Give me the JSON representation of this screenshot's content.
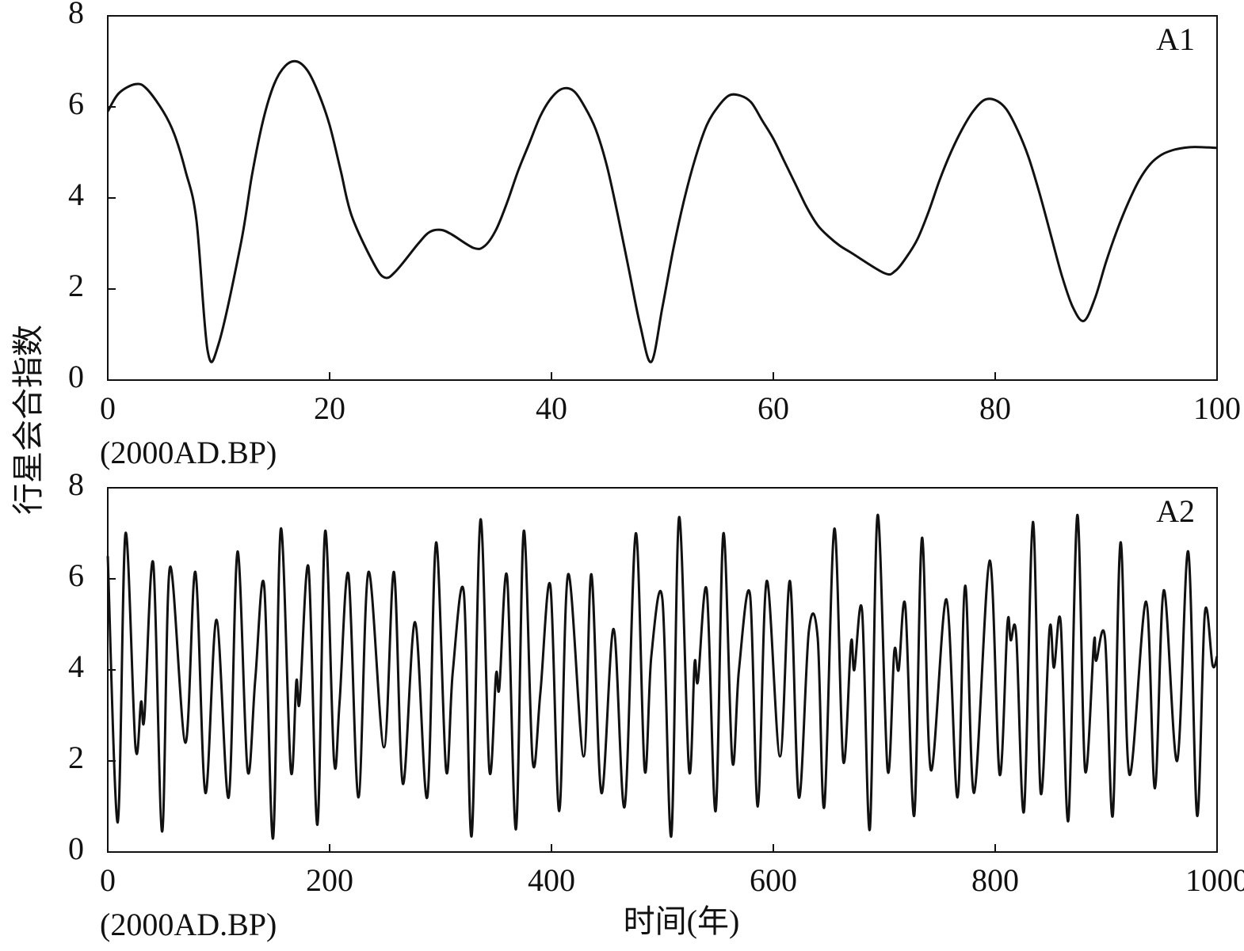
{
  "chart_data": [
    {
      "type": "line",
      "label": "A1",
      "ylabel": "行星会合指数",
      "note": "(2000AD.BP)",
      "x": [
        0,
        1,
        2.5,
        3.5,
        5,
        6,
        7,
        8,
        9,
        10,
        12,
        13,
        14,
        15,
        16,
        17,
        18,
        19,
        20,
        21,
        22,
        24,
        25,
        26,
        28,
        29,
        30,
        31,
        33,
        34,
        35,
        36,
        37,
        38,
        39,
        40,
        41,
        42,
        43,
        44,
        45,
        46,
        47,
        48,
        49,
        50,
        51,
        52,
        53,
        54,
        55,
        56,
        57,
        58,
        59,
        60,
        61,
        62,
        63,
        64,
        65,
        66,
        67,
        70,
        71,
        72,
        73,
        74,
        75,
        76,
        77,
        78,
        79,
        80,
        81,
        82,
        83,
        84,
        85,
        86,
        87,
        88,
        89,
        90,
        91,
        92,
        93,
        94,
        95,
        96,
        97,
        98,
        100
      ],
      "series": [
        {
          "name": null,
          "color": "#111111",
          "values": [
            5.9,
            6.3,
            6.5,
            6.4,
            5.9,
            5.4,
            4.6,
            3.5,
            0.65,
            0.8,
            3.0,
            4.5,
            5.7,
            6.5,
            6.9,
            7.0,
            6.8,
            6.3,
            5.6,
            4.6,
            3.6,
            2.55,
            2.25,
            2.4,
            3.0,
            3.25,
            3.3,
            3.2,
            2.9,
            2.95,
            3.3,
            3.9,
            4.6,
            5.2,
            5.8,
            6.2,
            6.4,
            6.35,
            6.0,
            5.5,
            4.7,
            3.6,
            2.4,
            1.2,
            0.4,
            1.6,
            2.9,
            4.0,
            4.9,
            5.6,
            6.0,
            6.25,
            6.25,
            6.1,
            5.7,
            5.3,
            4.8,
            4.3,
            3.8,
            3.4,
            3.15,
            2.95,
            2.8,
            2.35,
            2.4,
            2.7,
            3.1,
            3.7,
            4.4,
            5.0,
            5.5,
            5.9,
            6.15,
            6.15,
            5.95,
            5.5,
            4.9,
            4.1,
            3.2,
            2.3,
            1.6,
            1.3,
            1.8,
            2.6,
            3.3,
            3.9,
            4.4,
            4.75,
            4.95,
            5.05,
            5.1,
            5.12,
            5.1
          ]
        }
      ],
      "xlim": [
        0,
        100
      ],
      "xticks": [
        0,
        20,
        40,
        60,
        80,
        100
      ],
      "ylim": [
        0,
        8
      ],
      "yticks": [
        0,
        2,
        4,
        6,
        8
      ]
    },
    {
      "type": "line",
      "label": "A2",
      "xlabel": "时间(年)",
      "note": "(2000AD.BP)",
      "x": [
        0,
        9,
        16,
        25,
        30,
        33,
        41,
        49,
        56,
        70,
        79,
        88,
        98,
        109,
        117,
        126,
        133,
        141,
        149,
        156,
        165,
        170,
        173,
        181,
        189,
        196,
        204,
        209,
        217,
        226,
        235,
        249,
        258,
        266,
        277,
        288,
        296,
        305,
        311,
        321,
        328,
        336,
        344,
        350,
        353,
        360,
        368,
        375,
        383,
        390,
        399,
        407,
        415,
        429,
        436,
        445,
        456,
        466,
        476,
        484,
        490,
        500,
        508,
        515,
        524,
        529,
        532,
        540,
        548,
        555,
        563,
        569,
        579,
        586,
        594,
        606,
        615,
        623,
        632,
        640,
        646,
        655,
        663,
        670,
        673,
        680,
        687,
        694,
        703,
        709,
        713,
        719,
        727,
        734,
        742,
        756,
        766,
        773,
        781,
        795,
        804,
        811,
        814,
        819,
        826,
        834,
        841,
        849,
        853,
        859,
        866,
        874,
        881,
        889,
        891,
        899,
        906,
        913,
        921,
        936,
        944,
        952,
        964,
        974,
        982,
        989,
        996,
        1000
      ],
      "series": [
        {
          "name": null,
          "color": "#111111",
          "values": [
            6.5,
            0.65,
            7.0,
            2.3,
            3.3,
            2.95,
            6.35,
            0.45,
            6.25,
            2.4,
            6.15,
            1.3,
            5.1,
            1.2,
            6.6,
            1.8,
            3.8,
            5.85,
            0.3,
            7.1,
            1.8,
            3.75,
            3.3,
            6.25,
            0.6,
            7.05,
            2.0,
            3.3,
            6.1,
            1.2,
            6.15,
            2.3,
            6.15,
            1.5,
            5.05,
            1.2,
            6.8,
            1.8,
            3.95,
            5.7,
            0.35,
            7.3,
            1.8,
            3.9,
            3.6,
            6.05,
            0.5,
            7.05,
            2.0,
            3.5,
            5.85,
            0.9,
            6.1,
            2.1,
            6.1,
            1.3,
            4.9,
            1.0,
            7.0,
            1.8,
            4.3,
            5.55,
            0.35,
            7.35,
            1.8,
            4.15,
            3.75,
            5.75,
            0.9,
            7.0,
            2.0,
            4.0,
            5.65,
            1.0,
            5.95,
            2.1,
            5.95,
            1.2,
            4.85,
            4.7,
            1.0,
            7.1,
            2.0,
            4.6,
            4.0,
            5.3,
            0.5,
            7.4,
            1.8,
            4.4,
            4.0,
            5.4,
            0.8,
            6.9,
            1.8,
            5.55,
            1.2,
            5.85,
            1.3,
            6.4,
            1.7,
            5.0,
            4.65,
            4.75,
            0.9,
            7.25,
            1.3,
            4.9,
            4.05,
            5.05,
            0.7,
            7.4,
            1.8,
            4.6,
            4.2,
            4.7,
            0.8,
            6.8,
            1.7,
            5.5,
            1.4,
            5.75,
            2.0,
            6.6,
            0.8,
            5.25,
            4.1,
            4.3
          ]
        }
      ],
      "xlim": [
        0,
        1000
      ],
      "xticks": [
        0,
        200,
        400,
        600,
        800,
        1000
      ],
      "ylim": [
        0,
        8
      ],
      "yticks": [
        0,
        2,
        4,
        6,
        8
      ]
    }
  ]
}
